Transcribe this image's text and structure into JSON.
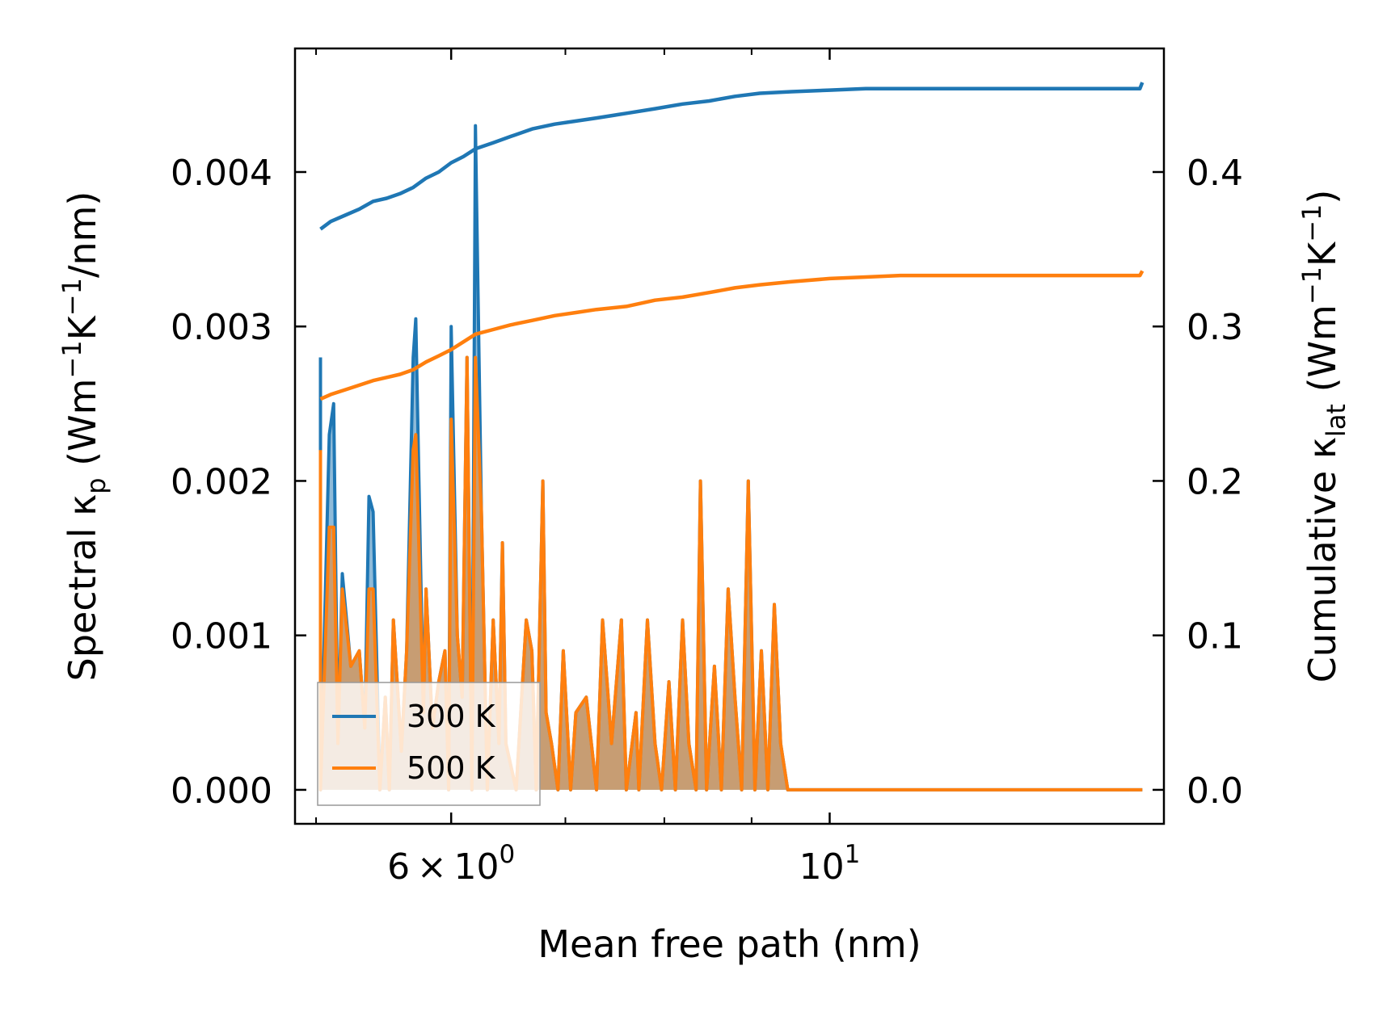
{
  "chart_data": {
    "type": "line",
    "xlabel": "Mean free path (nm)",
    "ylabel_left": {
      "prefix": "Spectral κ",
      "sub": "p",
      "units": [
        {
          "t": " (Wm"
        },
        {
          "t": "−1",
          "sup": true
        },
        {
          "t": "K"
        },
        {
          "t": "−1",
          "sup": true
        },
        {
          "t": "/nm)"
        }
      ]
    },
    "ylabel_right": {
      "prefix": "Cumulative κ",
      "sub": "lat",
      "units": [
        {
          "t": " (Wm"
        },
        {
          "t": "−1",
          "sup": true
        },
        {
          "t": "K"
        },
        {
          "t": "−1",
          "sup": true
        },
        {
          "t": ")"
        }
      ]
    },
    "xscale": "log",
    "xlim": [
      4.86,
      15.7
    ],
    "ylim_left": [
      -0.00022,
      0.0048
    ],
    "ylim_right": [
      -0.022,
      0.48
    ],
    "x_ticks": [
      {
        "value": 6,
        "label": "6",
        "exp": "0",
        "mantissa": true
      },
      {
        "value": 10,
        "label": "10",
        "exp": "1",
        "mantissa": false
      }
    ],
    "x_minor_ticks": [
      5,
      7,
      8,
      9
    ],
    "y_ticks_left": [
      "0.000",
      "0.001",
      "0.002",
      "0.003",
      "0.004"
    ],
    "y_tick_values_left": [
      0,
      0.001,
      0.002,
      0.003,
      0.004
    ],
    "y_ticks_right": [
      "0.0",
      "0.1",
      "0.2",
      "0.3",
      "0.4"
    ],
    "y_tick_values_right": [
      0,
      0.1,
      0.2,
      0.3,
      0.4
    ],
    "legend": {
      "location": "lower-left",
      "entries": [
        "300 K",
        "500 K"
      ]
    },
    "series": [
      {
        "name": "300 K",
        "color": "#1f77b4",
        "spectral": {
          "x": [
            5.03,
            5.03,
            5.09,
            5.12,
            5.15,
            5.18,
            5.24,
            5.27,
            5.3,
            5.34,
            5.37,
            5.4,
            5.45,
            5.49,
            5.52,
            5.55,
            5.61,
            5.65,
            5.7,
            5.72,
            5.78,
            5.8,
            5.85,
            5.9,
            5.95,
            5.98,
            6.0,
            6.05,
            6.09,
            6.13,
            6.17,
            6.2,
            6.25,
            6.3,
            6.35,
            6.4,
            6.43,
            6.46,
            6.55,
            6.64,
            6.69,
            6.73,
            6.79,
            6.82,
            6.87,
            6.93,
            6.98,
            7.05,
            7.1,
            7.2,
            7.3,
            7.36,
            7.45,
            7.55,
            7.6,
            7.7,
            7.73,
            7.82,
            7.9,
            7.97,
            8.05,
            8.12,
            8.2,
            8.27,
            8.35,
            8.4,
            8.47,
            8.56,
            8.64,
            8.72,
            8.8,
            8.88,
            8.96,
            9.04,
            9.12,
            9.2,
            9.28,
            9.36,
            9.45,
            9.52,
            9.6,
            9.68,
            9.77,
            9.85,
            9.93,
            10.02,
            10.1,
            10.2,
            10.3,
            10.4,
            10.45,
            10.52,
            10.6,
            10.7,
            10.75,
            10.85,
            10.9,
            11.0,
            11.1,
            11.2,
            11.3,
            11.4,
            11.5,
            11.6,
            11.7,
            11.8,
            11.9,
            12.0,
            12.1,
            12.2,
            12.3,
            12.4,
            12.6,
            13.1,
            13.2,
            13.3,
            15.1,
            15.2,
            15.25
          ],
          "y": [
            0.0028,
            0.0,
            0.0023,
            0.0025,
            0.0003,
            0.0014,
            0.0008,
            0.00085,
            0.0009,
            0.0004,
            0.0019,
            0.0018,
            0.0,
            0.0006,
            0.0,
            0.0011,
            0.00025,
            0.0009,
            0.0028,
            0.00305,
            0.0005,
            0.0013,
            0.0004,
            0.0007,
            0.0009,
            0.0,
            0.003,
            0.001,
            0.0006,
            0.0028,
            0.0,
            0.0043,
            0.0018,
            0.0,
            0.0011,
            0.0003,
            0.0016,
            0.0003,
            0.0,
            0.0011,
            0.0009,
            0.0,
            0.002,
            0.0005,
            0.0003,
            0.0,
            0.0009,
            0.0,
            0.0005,
            0.0006,
            0.0,
            0.0011,
            0.0003,
            0.0011,
            0.0,
            0.0005,
            0.0,
            0.0011,
            0.0003,
            0.0,
            0.0007,
            0.0,
            0.0011,
            0.0003,
            0.0,
            0.002,
            0.0,
            0.0008,
            0.0,
            0.0013,
            0.0006,
            0.0,
            0.002,
            0.0,
            0.0009,
            0.0,
            0.0012,
            0.0003,
            0.0,
            0.0,
            0.0,
            0.0,
            0.0,
            0.0,
            0.0,
            0.0,
            0.0,
            0.0,
            0.0,
            0.0,
            0.0,
            0.0,
            0.0,
            0.0,
            0.0,
            0.0,
            0.0,
            0.0,
            0.0,
            0.0,
            0.0,
            0.0,
            0.0,
            0.0,
            0.0,
            0.0,
            0.0,
            0.0,
            0.0,
            0.0,
            0.0,
            0.0,
            0.0,
            0.0,
            0.0,
            0.0,
            0.0,
            0.0,
            0.0
          ]
        },
        "cumulative": {
          "x": [
            5.03,
            5.1,
            5.2,
            5.3,
            5.4,
            5.5,
            5.6,
            5.7,
            5.8,
            5.9,
            6.0,
            6.1,
            6.2,
            6.35,
            6.5,
            6.7,
            6.9,
            7.1,
            7.3,
            7.6,
            7.9,
            8.2,
            8.5,
            8.8,
            9.1,
            9.5,
            10.0,
            10.5,
            11.0,
            11.7,
            12.5,
            13.5,
            14.5,
            15.2,
            15.25
          ],
          "y": [
            0.363,
            0.368,
            0.372,
            0.376,
            0.381,
            0.383,
            0.386,
            0.39,
            0.396,
            0.4,
            0.406,
            0.41,
            0.415,
            0.419,
            0.423,
            0.428,
            0.431,
            0.433,
            0.435,
            0.438,
            0.441,
            0.444,
            0.446,
            0.449,
            0.451,
            0.452,
            0.453,
            0.454,
            0.454,
            0.454,
            0.454,
            0.454,
            0.454,
            0.454,
            0.458
          ]
        }
      },
      {
        "name": "500 K",
        "color": "#ff7f0e",
        "spectral": {
          "x": [
            5.03,
            5.03,
            5.09,
            5.12,
            5.15,
            5.18,
            5.24,
            5.27,
            5.3,
            5.34,
            5.37,
            5.4,
            5.45,
            5.49,
            5.52,
            5.55,
            5.61,
            5.65,
            5.7,
            5.72,
            5.78,
            5.8,
            5.85,
            5.9,
            5.95,
            5.98,
            6.0,
            6.05,
            6.09,
            6.13,
            6.17,
            6.2,
            6.25,
            6.3,
            6.35,
            6.4,
            6.43,
            6.46,
            6.55,
            6.64,
            6.69,
            6.73,
            6.79,
            6.82,
            6.87,
            6.93,
            6.98,
            7.05,
            7.1,
            7.2,
            7.3,
            7.36,
            7.45,
            7.55,
            7.6,
            7.7,
            7.73,
            7.82,
            7.9,
            7.97,
            8.05,
            8.12,
            8.2,
            8.27,
            8.35,
            8.4,
            8.47,
            8.56,
            8.64,
            8.72,
            8.8,
            8.88,
            8.96,
            9.04,
            9.12,
            9.2,
            9.28,
            9.36,
            9.45,
            9.52,
            9.6,
            9.68,
            9.77,
            9.85,
            9.93,
            10.02,
            10.1,
            10.2,
            10.3,
            10.4,
            10.45,
            10.52,
            10.6,
            10.7,
            10.75,
            10.85,
            10.9,
            11.0,
            11.1,
            11.2,
            11.3,
            11.4,
            11.5,
            11.6,
            11.7,
            11.8,
            11.9,
            12.0,
            12.1,
            12.2,
            12.3,
            12.4,
            12.6,
            13.1,
            13.2,
            13.3,
            15.1,
            15.2,
            15.25
          ],
          "y": [
            0.0022,
            0.0,
            0.0017,
            0.0017,
            0.0003,
            0.0013,
            0.0008,
            0.00085,
            0.0009,
            0.0004,
            0.0013,
            0.0013,
            0.0,
            0.0006,
            0.0,
            0.0011,
            0.00025,
            0.0009,
            0.0022,
            0.0023,
            0.0005,
            0.0013,
            0.0004,
            0.0007,
            0.0009,
            0.0,
            0.0024,
            0.001,
            0.0006,
            0.0028,
            0.0,
            0.0028,
            0.0018,
            0.0,
            0.0011,
            0.0003,
            0.0016,
            0.0003,
            0.0,
            0.0011,
            0.0009,
            0.0,
            0.002,
            0.0005,
            0.0003,
            0.0,
            0.0009,
            0.0,
            0.0005,
            0.0006,
            0.0,
            0.0011,
            0.0003,
            0.0011,
            0.0,
            0.0005,
            0.0,
            0.0011,
            0.0003,
            0.0,
            0.0007,
            0.0,
            0.0011,
            0.0003,
            0.0,
            0.002,
            0.0,
            0.0008,
            0.0,
            0.0013,
            0.0006,
            0.0,
            0.002,
            0.0,
            0.0009,
            0.0,
            0.0012,
            0.0003,
            0.0,
            0.0,
            0.0,
            0.0,
            0.0,
            0.0,
            0.0,
            0.0,
            0.0,
            0.0,
            0.0,
            0.0,
            0.0,
            0.0,
            0.0,
            0.0,
            0.0,
            0.0,
            0.0,
            0.0,
            0.0,
            0.0,
            0.0,
            0.0,
            0.0,
            0.0,
            0.0,
            0.0,
            0.0,
            0.0,
            0.0,
            0.0,
            0.0,
            0.0,
            0.0,
            0.0,
            0.0,
            0.0,
            0.0,
            0.0,
            0.0
          ]
        },
        "cumulative": {
          "x": [
            5.03,
            5.1,
            5.2,
            5.3,
            5.4,
            5.5,
            5.6,
            5.7,
            5.8,
            5.9,
            6.0,
            6.1,
            6.2,
            6.35,
            6.5,
            6.7,
            6.9,
            7.1,
            7.3,
            7.6,
            7.9,
            8.2,
            8.5,
            8.8,
            9.1,
            9.5,
            10.0,
            10.5,
            11.0,
            11.7,
            12.5,
            13.5,
            14.5,
            15.2,
            15.25
          ],
          "y": [
            0.253,
            0.256,
            0.259,
            0.262,
            0.265,
            0.267,
            0.269,
            0.272,
            0.277,
            0.281,
            0.285,
            0.29,
            0.295,
            0.298,
            0.301,
            0.304,
            0.307,
            0.309,
            0.311,
            0.313,
            0.317,
            0.319,
            0.322,
            0.325,
            0.327,
            0.329,
            0.331,
            0.332,
            0.333,
            0.333,
            0.333,
            0.333,
            0.333,
            0.333,
            0.336
          ]
        }
      }
    ]
  }
}
